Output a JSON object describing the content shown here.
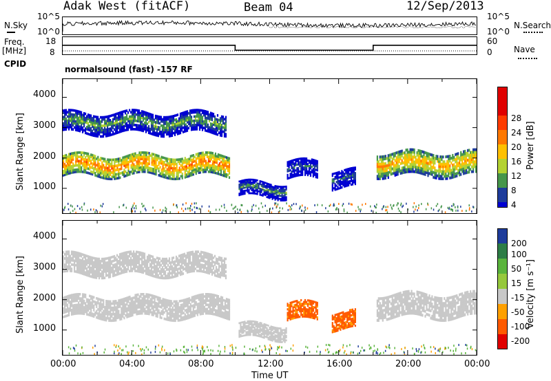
{
  "header": {
    "station": "Adak West (fitACF)",
    "beam": "Beam 04",
    "date": "12/Sep/2013"
  },
  "top_panels": {
    "nsky_label": "N.Sky",
    "nsky_ticks": [
      "10^5",
      "10^0"
    ],
    "nsearch_label": "N.Search",
    "nsearch_ticks": [
      "10^5",
      "10^0"
    ],
    "freq_label": "Freq.",
    "freq_unit": "[MHz]",
    "freq_ticks": [
      "18",
      "8"
    ],
    "nave_label": "Nave",
    "nave_ticks": [
      "60",
      "0"
    ],
    "cpid_label": "CPID",
    "cpid_text": "normalsound (fast) -157 RF"
  },
  "chart_data": [
    {
      "type": "heatmap",
      "name": "Power",
      "ylabel": "Slant Range [km]",
      "xlabel": "",
      "y_ticks": [
        "1000",
        "2000",
        "3000",
        "4000"
      ],
      "ylim": [
        180,
        4600
      ],
      "xlim_hours": [
        0,
        24
      ],
      "colorbar": {
        "label": "Power [dB]",
        "ticks": [
          "28",
          "24",
          "20",
          "16",
          "12",
          "8",
          "4"
        ],
        "colors": [
          "#e00000",
          "#ff3c00",
          "#ff7800",
          "#ffc000",
          "#b4d232",
          "#46964b",
          "#1e3c9b",
          "#0000d2"
        ]
      },
      "echo_bands": [
        {
          "t0": 0.0,
          "t1": 9.7,
          "r0": 1400,
          "r1": 2100,
          "level": 24
        },
        {
          "t0": 0.0,
          "t1": 9.5,
          "r0": 2800,
          "r1": 3500,
          "level": 14
        },
        {
          "t0": 10.2,
          "t1": 13.0,
          "r0": 700,
          "r1": 1200,
          "level": 12
        },
        {
          "t0": 13.0,
          "t1": 14.8,
          "r0": 1300,
          "r1": 1900,
          "level": 10
        },
        {
          "t0": 15.6,
          "t1": 17.0,
          "r0": 1000,
          "r1": 1600,
          "level": 10
        },
        {
          "t0": 18.2,
          "t1": 24.0,
          "r0": 1400,
          "r1": 2200,
          "level": 22
        }
      ]
    },
    {
      "type": "heatmap",
      "name": "Velocity",
      "ylabel": "Slant Range [km]",
      "xlabel": "Time UT",
      "x_ticks": [
        "00:00",
        "04:00",
        "08:00",
        "12:00",
        "16:00",
        "20:00",
        "00:00"
      ],
      "y_ticks": [
        "1000",
        "2000",
        "3000",
        "4000"
      ],
      "ylim": [
        180,
        4600
      ],
      "xlim_hours": [
        0,
        24
      ],
      "colorbar": {
        "label": "Velocity [m s⁻¹]",
        "ticks": [
          "200",
          "100",
          "50",
          "15",
          "-15",
          "-50",
          "-100",
          "-200"
        ],
        "colors": [
          "#1e3c9b",
          "#2d7d46",
          "#5ab43c",
          "#c8c8c8",
          "#c8c8c8",
          "#ffa000",
          "#ff5a00",
          "#e00000"
        ]
      },
      "echo_bands": [
        {
          "t0": 0.0,
          "t1": 9.7,
          "r0": 1400,
          "r1": 2100,
          "velocity": 0
        },
        {
          "t0": 0.0,
          "t1": 9.5,
          "r0": 2800,
          "r1": 3500,
          "velocity": 0
        },
        {
          "t0": 10.2,
          "t1": 13.0,
          "r0": 700,
          "r1": 1200,
          "velocity": 0
        },
        {
          "t0": 13.0,
          "t1": 14.8,
          "r0": 1300,
          "r1": 1900,
          "velocity": -60
        },
        {
          "t0": 15.6,
          "t1": 17.0,
          "r0": 1000,
          "r1": 1600,
          "velocity": -60
        },
        {
          "t0": 18.2,
          "t1": 24.0,
          "r0": 1400,
          "r1": 2200,
          "velocity": 0
        }
      ]
    }
  ],
  "freq_series": {
    "hours": [
      0,
      10,
      10,
      18,
      18,
      24
    ],
    "mhz": [
      13.5,
      13.5,
      10.5,
      10.5,
      13.5,
      13.5
    ]
  }
}
